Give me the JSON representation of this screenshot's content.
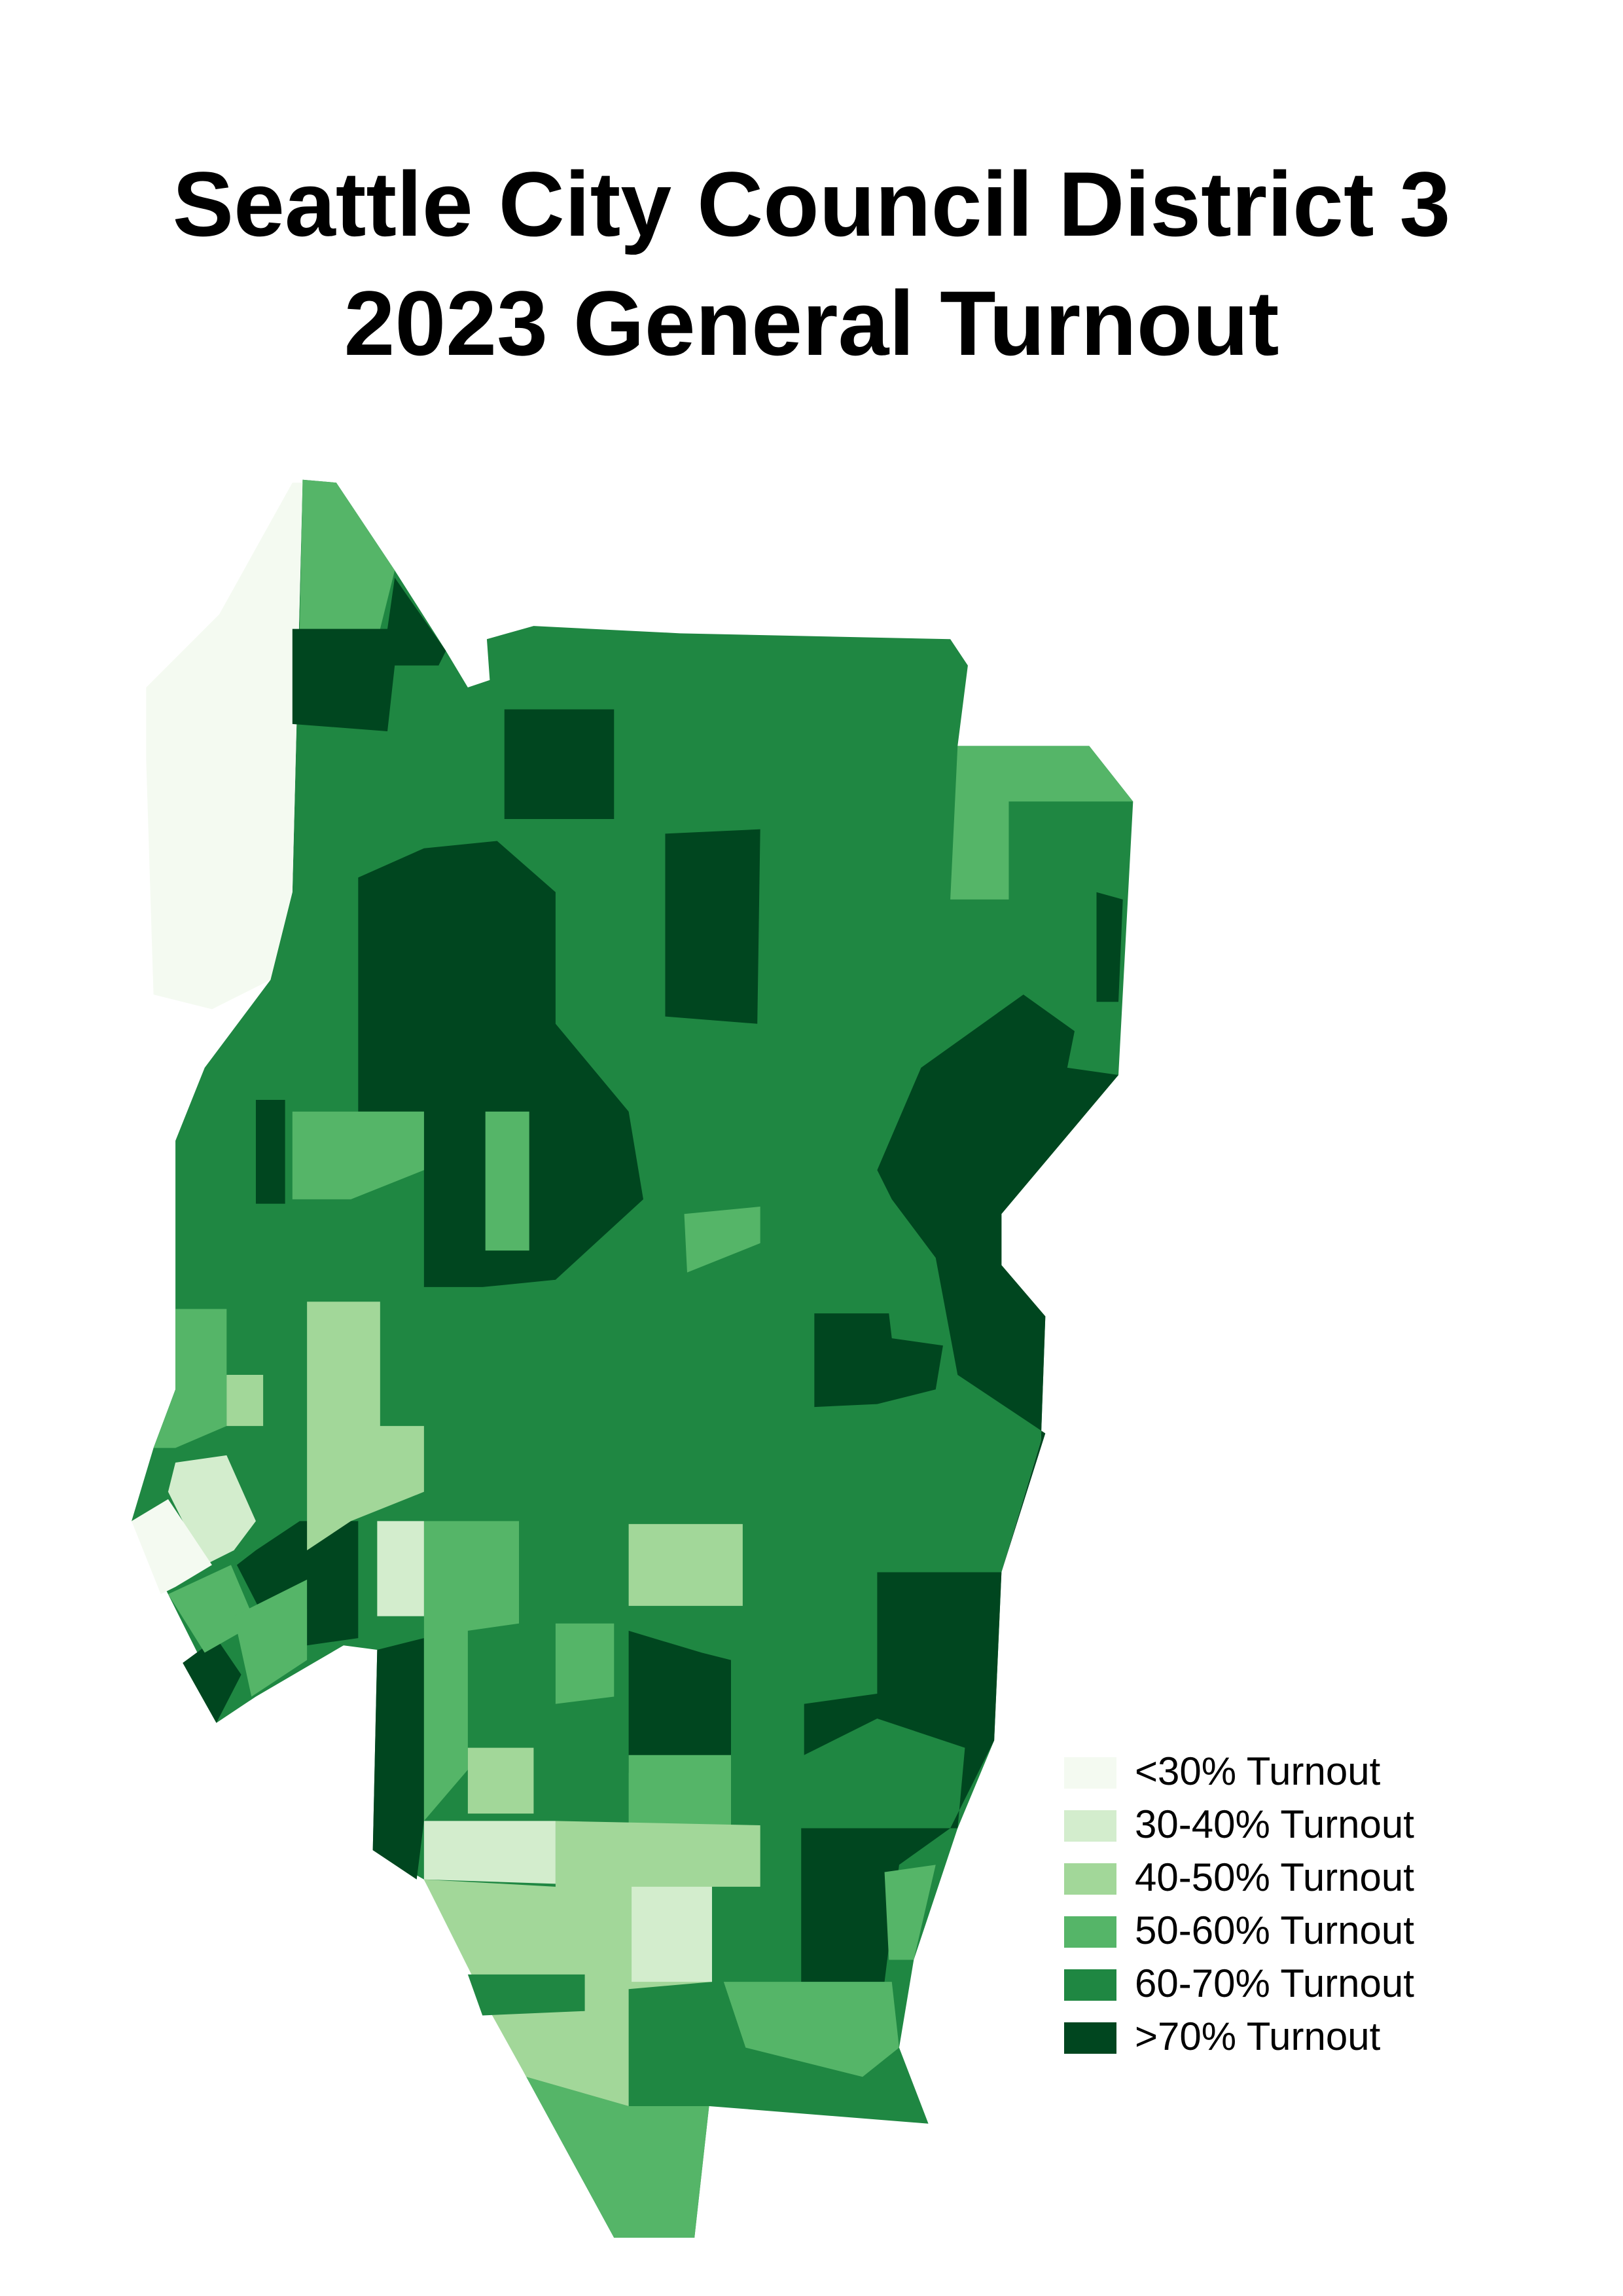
{
  "title_lines": [
    "Seattle City Council District 3",
    "2023 General Turnout"
  ],
  "legend": [
    {
      "label": "<30% Turnout",
      "color": "#f4faf1"
    },
    {
      "label": "30-40% Turnout",
      "color": "#d3edcd"
    },
    {
      "label": "40-50% Turnout",
      "color": "#a2d799"
    },
    {
      "label": "50-60% Turnout",
      "color": "#55b568"
    },
    {
      "label": "60-70% Turnout",
      "color": "#1f8742"
    },
    {
      "label": ">70% Turnout",
      "color": "#00461f"
    }
  ]
}
